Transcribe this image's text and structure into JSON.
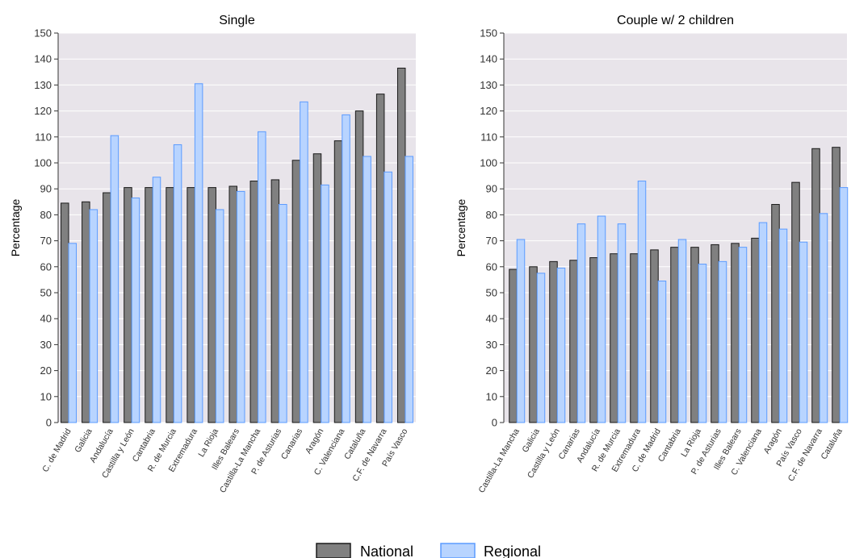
{
  "colors": {
    "panel_bg": "#E8E4EA",
    "national_fill": "#808080",
    "national_stroke": "#1a1a1a",
    "regional_fill": "#B8D4FF",
    "regional_stroke": "#5B9BFF",
    "grid": "#ffffff"
  },
  "legend": {
    "national_label": "National",
    "regional_label": "Regional"
  },
  "chart_data": [
    {
      "type": "bar",
      "title": "Single",
      "ylabel": "Percentage",
      "ylim": [
        0,
        150
      ],
      "yticks": [
        0,
        10,
        20,
        30,
        40,
        50,
        60,
        70,
        80,
        90,
        100,
        110,
        120,
        130,
        140,
        150
      ],
      "grid": true,
      "categories": [
        "C. de Madrid",
        "Galicia",
        "Andalucía",
        "Castilla y León",
        "Cantabria",
        "R. de Murcia",
        "Extremadura",
        "La Rioja",
        "Illes Balears",
        "Castilla-La Mancha",
        "P. de Asturias",
        "Canarias",
        "Aragón",
        "C. Valenciana",
        "Cataluña",
        "C.F. de Navarra",
        "País Vasco"
      ],
      "series": [
        {
          "name": "National",
          "values": [
            84.5,
            85,
            88.5,
            90.5,
            90.5,
            90.5,
            90.5,
            90.5,
            91,
            93,
            93.5,
            101,
            103.5,
            108.5,
            120,
            126.5,
            136.5
          ]
        },
        {
          "name": "Regional",
          "values": [
            69,
            82,
            110.5,
            86.5,
            94.5,
            107,
            130.5,
            82,
            89,
            112,
            84,
            123.5,
            91.5,
            118.5,
            102.5,
            96.5,
            102.5
          ]
        }
      ]
    },
    {
      "type": "bar",
      "title": "Couple w/ 2 children",
      "ylabel": "Percentage",
      "ylim": [
        0,
        150
      ],
      "yticks": [
        0,
        10,
        20,
        30,
        40,
        50,
        60,
        70,
        80,
        90,
        100,
        110,
        120,
        130,
        140,
        150
      ],
      "grid": true,
      "categories": [
        "Castilla-La Mancha",
        "Galicia",
        "Castilla y León",
        "Canarias",
        "Andalucía",
        "R. de Murcia",
        "Extremadura",
        "C. de Madrid",
        "Cantabria",
        "La Rioja",
        "P. de Asturias",
        "Illes Balears",
        "C. Valenciana",
        "Aragón",
        "País Vasco",
        "C.F. de Navarra",
        "Cataluña"
      ],
      "series": [
        {
          "name": "National",
          "values": [
            59,
            60,
            62,
            62.5,
            63.5,
            65,
            65,
            66.5,
            67.5,
            67.5,
            68.5,
            69,
            71,
            84,
            92.5,
            105.5,
            106
          ]
        },
        {
          "name": "Regional",
          "values": [
            70.5,
            57.5,
            59.5,
            76.5,
            79.5,
            76.5,
            93,
            54.5,
            70.5,
            61,
            62,
            67.5,
            77,
            74.5,
            69.5,
            80.5,
            90.5
          ]
        }
      ]
    }
  ]
}
